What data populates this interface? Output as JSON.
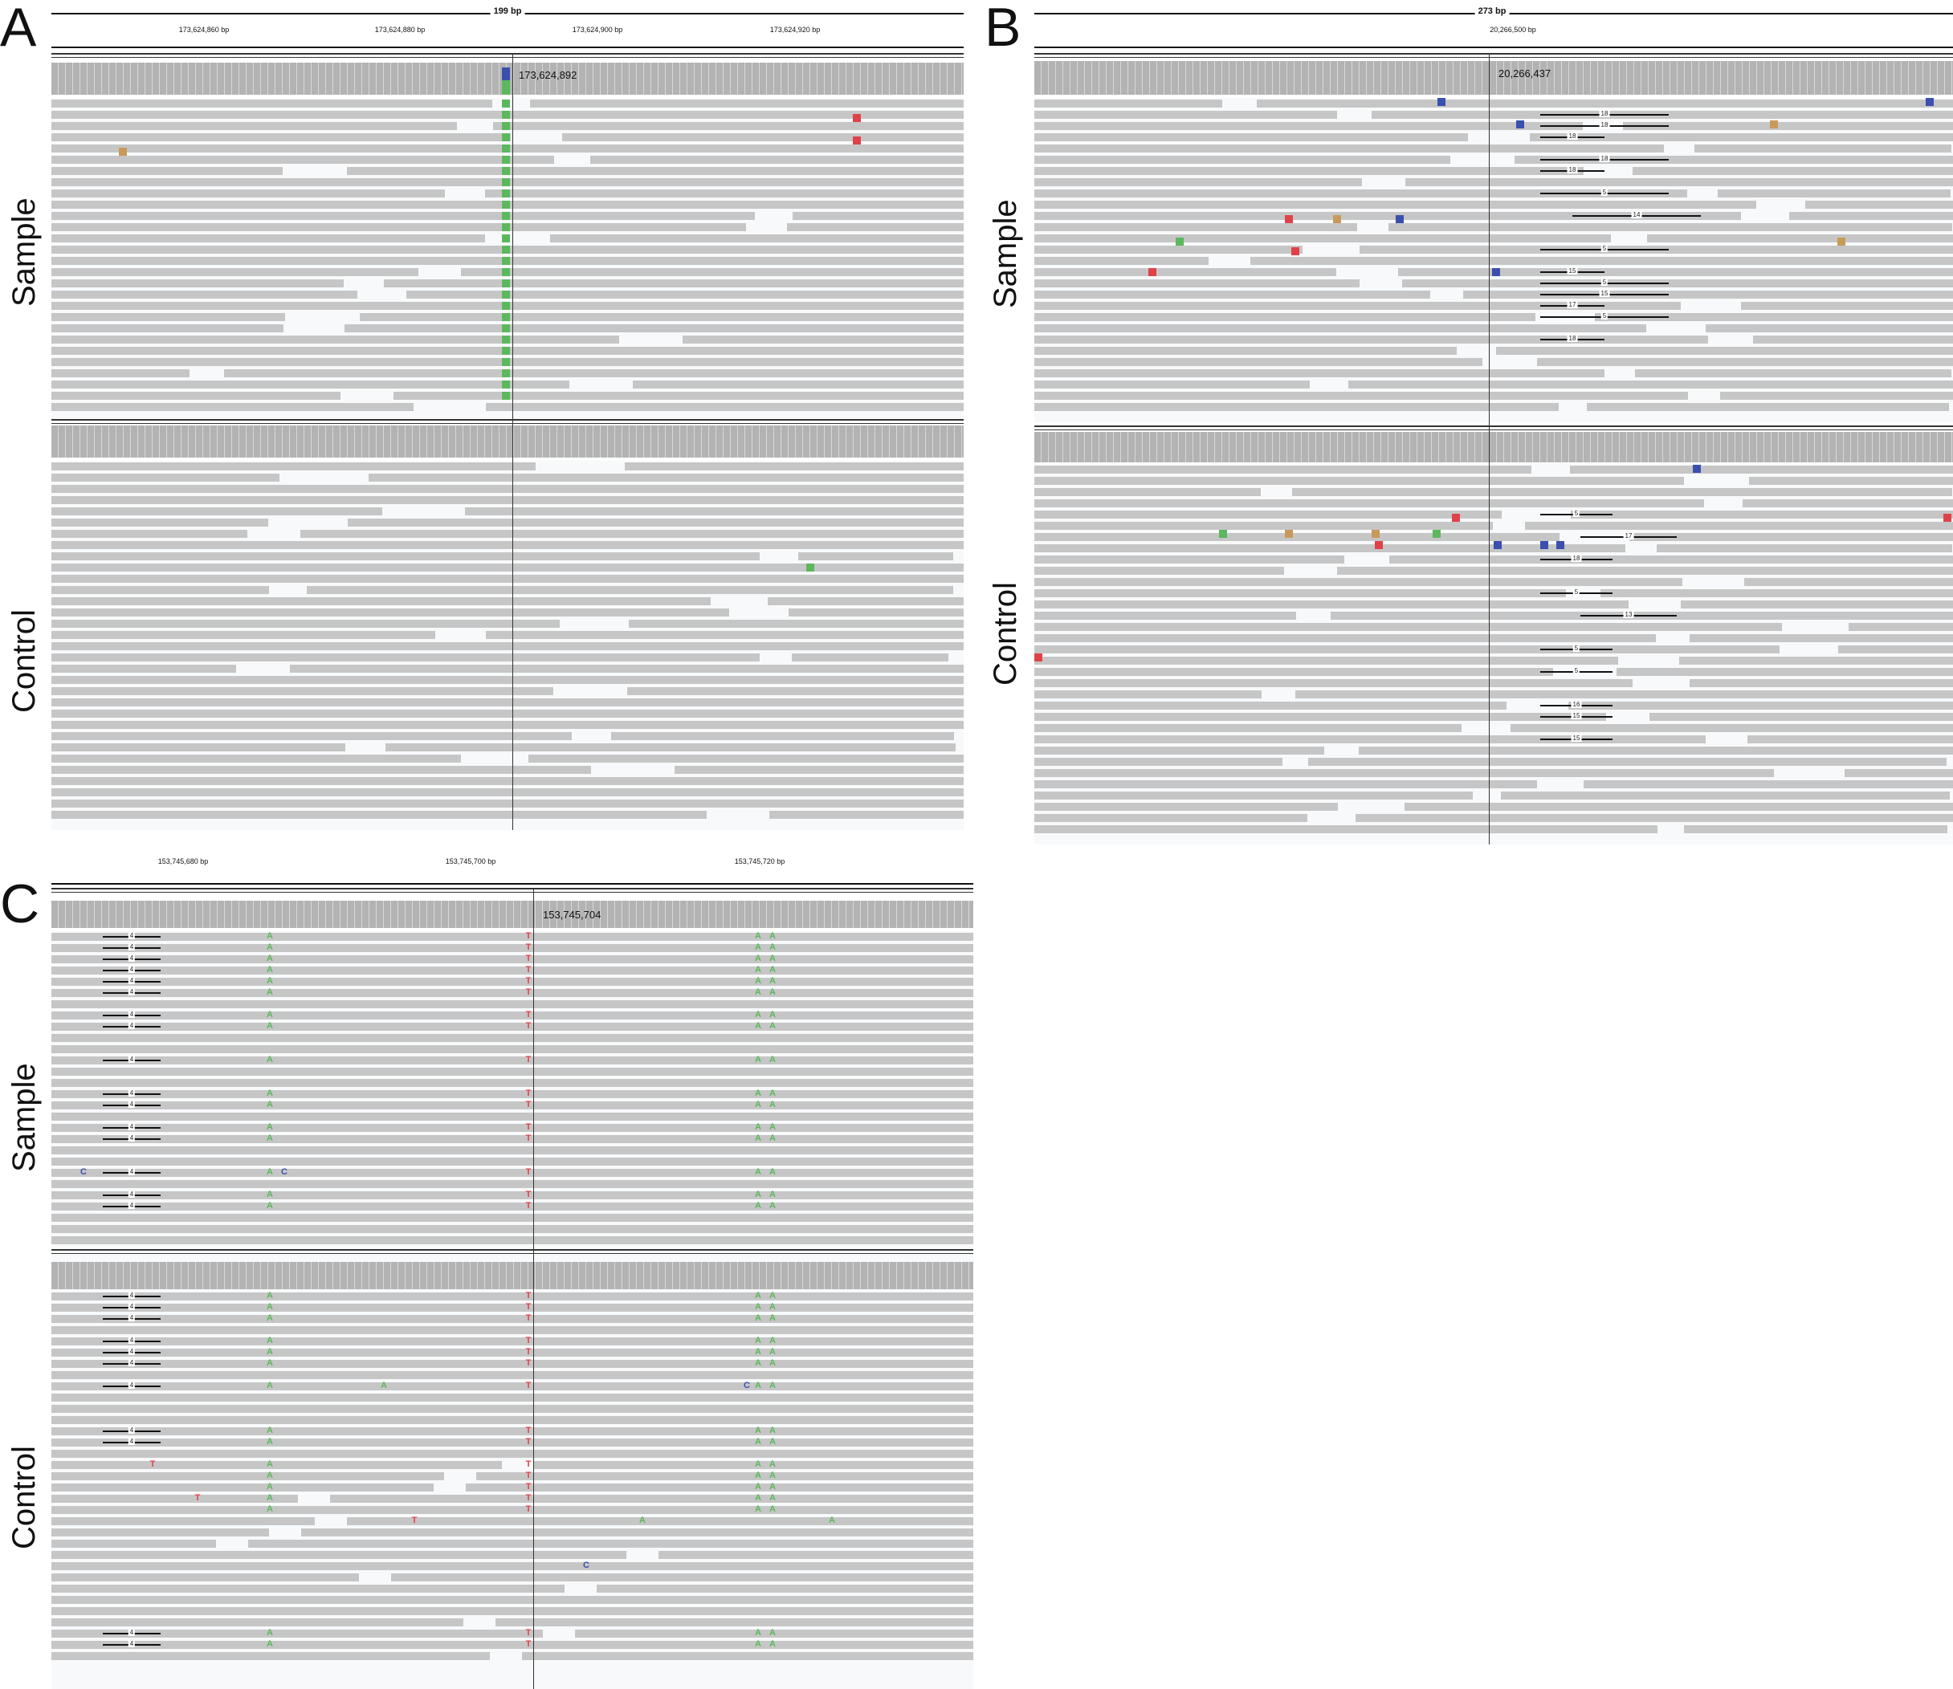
{
  "panels": [
    {
      "id": "A",
      "letter": "A",
      "span": "199 bp",
      "ticks": [
        "173,624,860 bp",
        "173,624,880 bp",
        "173,624,900 bp",
        "173,624,920 bp"
      ],
      "cursor_position": "173,624,892",
      "tracks": [
        "Sample",
        "Control"
      ]
    },
    {
      "id": "B",
      "letter": "B",
      "span": "273 bp",
      "ticks": [
        "20,266,500 bp"
      ],
      "cursor_position": "20,266,437",
      "tracks": [
        "Sample",
        "Control"
      ],
      "insertion_labels_sample": [
        "18",
        "18",
        "18",
        "18",
        "18",
        "5",
        "14",
        "5",
        "15",
        "5",
        "15",
        "17",
        "5",
        "18"
      ],
      "insertion_labels_control": [
        "5",
        "17",
        "18",
        "5",
        "13",
        "5",
        "5",
        "16",
        "15",
        "15"
      ]
    },
    {
      "id": "C",
      "letter": "C",
      "ticks": [
        "153,745,680 bp",
        "153,745,700 bp",
        "153,745,720 bp"
      ],
      "cursor_position": "153,745,704",
      "tracks": [
        "Sample",
        "Control"
      ],
      "insertion_label": "4",
      "bases": {
        "A": "A",
        "T": "T",
        "C": "C"
      }
    }
  ],
  "colors": {
    "read": "#c6c6c6",
    "coverage": "#b3b3b3",
    "A": "#5cb85c",
    "C": "#3b4fae",
    "G": "#c89a5a",
    "T": "#e0424a"
  }
}
